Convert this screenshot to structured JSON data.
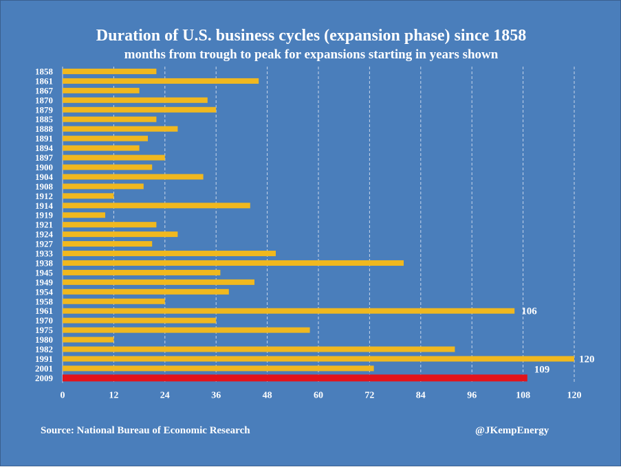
{
  "chart_data": {
    "type": "bar",
    "orientation": "horizontal",
    "title": "Duration of U.S. business cycles (expansion phase) since 1858",
    "subtitle": "months from trough to peak for expansions starting in years shown",
    "categories": [
      "1858",
      "1861",
      "1867",
      "1870",
      "1879",
      "1885",
      "1888",
      "1891",
      "1894",
      "1897",
      "1900",
      "1904",
      "1908",
      "1912",
      "1914",
      "1919",
      "1921",
      "1924",
      "1927",
      "1933",
      "1938",
      "1945",
      "1949",
      "1954",
      "1958",
      "1961",
      "1970",
      "1975",
      "1980",
      "1982",
      "1991",
      "2001",
      "2009"
    ],
    "values": [
      22,
      46,
      18,
      34,
      36,
      22,
      27,
      20,
      18,
      24,
      21,
      33,
      19,
      12,
      44,
      10,
      22,
      27,
      21,
      50,
      80,
      37,
      45,
      39,
      24,
      106,
      36,
      58,
      12,
      92,
      120,
      73,
      109
    ],
    "data_labels": {
      "1961": "106",
      "1991": "120",
      "2009": "109"
    },
    "xlim": [
      0,
      120
    ],
    "x_ticks": [
      "0",
      "12",
      "24",
      "36",
      "48",
      "60",
      "72",
      "84",
      "96",
      "108",
      "120"
    ],
    "grid": "vertical dashed",
    "colors": {
      "background": "#4a7ebb",
      "bar": "#f0b81f",
      "highlight_bar": "#e3131b",
      "highlight_category": "2009",
      "text": "#ffffff",
      "gridline": "#c9d6ea"
    }
  },
  "footer": {
    "source": "Source: National Bureau of Economic Research",
    "credit": "@JKempEnergy"
  }
}
